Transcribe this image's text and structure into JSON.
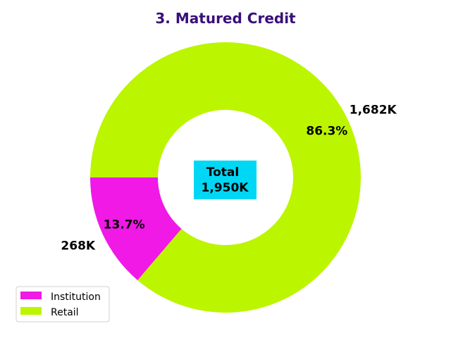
{
  "chart_data": {
    "type": "pie",
    "style": "donut",
    "title": "3. Matured Credit",
    "categories": [
      "Institution",
      "Retail"
    ],
    "values": [
      268,
      1682
    ],
    "value_labels": [
      "268K",
      "1,682K"
    ],
    "percent_labels": [
      "13.7%",
      "86.3%"
    ],
    "colors": [
      "#f019e6",
      "#bcf500"
    ],
    "center_label": {
      "line1": "Total",
      "line2": "1,950K",
      "background": "#00d7f5"
    },
    "title_color": "#3a0f7a",
    "legend": {
      "placement": "lower-left",
      "entries": [
        "Institution",
        "Retail"
      ]
    }
  }
}
